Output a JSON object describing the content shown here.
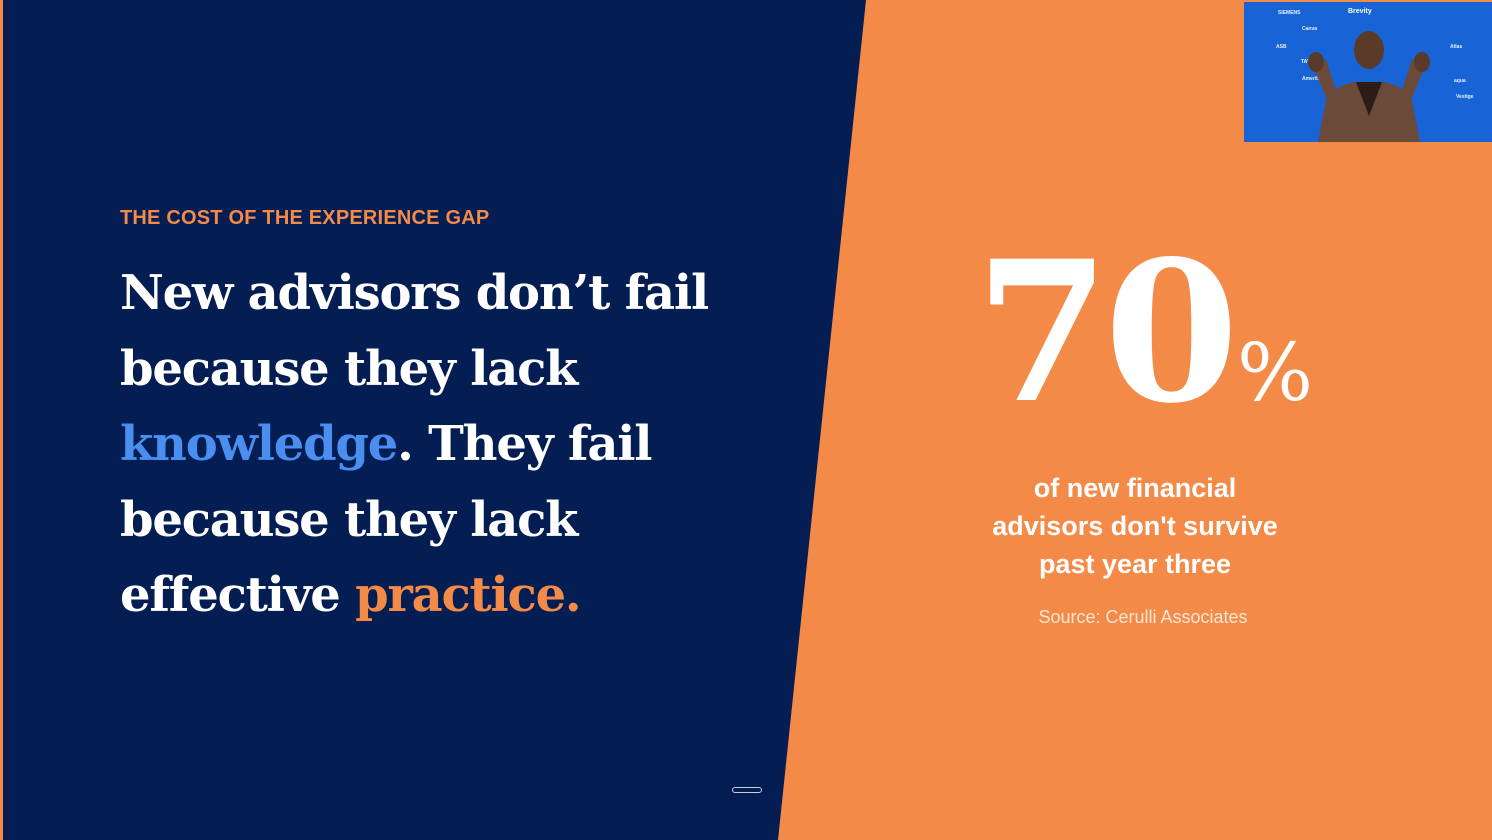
{
  "colors": {
    "navy": "#041d52",
    "orange": "#f38a48",
    "blue_accent": "#4a8ff0",
    "video_bg": "#1864d6"
  },
  "slide": {
    "eyebrow": "THE COST OF THE EXPERIENCE GAP",
    "headline": {
      "part1": "New advisors don’t fail because they lack ",
      "highlight_blue": "knowledge",
      "part2": ". They fail because they lack effective ",
      "highlight_orange": "practice."
    },
    "stat": {
      "number": "70",
      "unit": "%",
      "caption_lines": [
        "of new financial",
        "advisors don't survive",
        "past year three"
      ],
      "source": "Source: Cerulli Associates"
    }
  },
  "video": {
    "brand": "Brevity",
    "logos": [
      "SIEMENS",
      "Canva",
      "ASB",
      "TAYLOR",
      "Ameritas",
      "Vestige",
      "aqua",
      "Atlas"
    ]
  }
}
